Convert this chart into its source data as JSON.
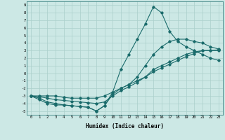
{
  "xlabel": "Humidex (Indice chaleur)",
  "bg_color": "#cce8e5",
  "grid_color": "#aacfcb",
  "line_color": "#1a6b6b",
  "xlim": [
    -0.5,
    23.5
  ],
  "ylim": [
    -5.5,
    9.5
  ],
  "xticks": [
    0,
    1,
    2,
    3,
    4,
    5,
    6,
    7,
    8,
    9,
    10,
    11,
    12,
    13,
    14,
    15,
    16,
    17,
    18,
    19,
    20,
    21,
    22,
    23
  ],
  "yticks": [
    9,
    8,
    7,
    6,
    5,
    4,
    3,
    2,
    1,
    0,
    -1,
    -2,
    -3,
    -4,
    -5
  ],
  "series1_x": [
    0,
    1,
    2,
    3,
    4,
    5,
    6,
    7,
    8,
    9,
    10,
    11,
    12,
    13,
    14,
    15,
    16,
    17,
    18,
    19,
    20,
    21,
    22,
    23
  ],
  "series1_y": [
    -3,
    -3.3,
    -3.8,
    -4.0,
    -4.2,
    -4.3,
    -4.4,
    -4.5,
    -5.0,
    -4.3,
    -2.5,
    0.5,
    2.5,
    4.5,
    6.5,
    8.8,
    8.0,
    5.5,
    4.2,
    3.5,
    3.0,
    2.5,
    2.0,
    1.7
  ],
  "series2_x": [
    0,
    1,
    2,
    3,
    4,
    5,
    6,
    7,
    8,
    9,
    10,
    11,
    12,
    13,
    14,
    15,
    16,
    17,
    18,
    19,
    20,
    21,
    22,
    23
  ],
  "series2_y": [
    -3,
    -3,
    -3,
    -3,
    -3.2,
    -3.3,
    -3.3,
    -3.3,
    -3.3,
    -3.0,
    -2.5,
    -2.0,
    -1.5,
    -1.0,
    -0.5,
    0.5,
    1.0,
    1.5,
    2.0,
    2.5,
    2.8,
    3.0,
    3.0,
    3.1
  ],
  "series3_x": [
    0,
    1,
    2,
    3,
    4,
    5,
    6,
    7,
    8,
    9,
    10,
    11,
    12,
    13,
    14,
    15,
    16,
    17,
    18,
    19,
    20,
    21,
    22,
    23
  ],
  "series3_y": [
    -3,
    -3.1,
    -3.3,
    -3.5,
    -3.6,
    -3.7,
    -3.8,
    -3.9,
    -4.0,
    -3.8,
    -3.0,
    -2.3,
    -1.8,
    -1.2,
    -0.5,
    0.2,
    0.7,
    1.2,
    1.7,
    2.2,
    2.6,
    3.0,
    3.0,
    3.0
  ],
  "series4_x": [
    0,
    1,
    2,
    3,
    4,
    5,
    6,
    7,
    8,
    9,
    10,
    11,
    12,
    13,
    14,
    15,
    16,
    17,
    18,
    19,
    20,
    21,
    22,
    23
  ],
  "series4_y": [
    -3,
    -3.5,
    -4.0,
    -4.2,
    -4.2,
    -4.3,
    -4.4,
    -4.5,
    -5.0,
    -4.3,
    -2.8,
    -2.0,
    -1.5,
    -0.5,
    1.0,
    2.5,
    3.5,
    4.2,
    4.5,
    4.5,
    4.2,
    4.0,
    3.5,
    3.2
  ]
}
